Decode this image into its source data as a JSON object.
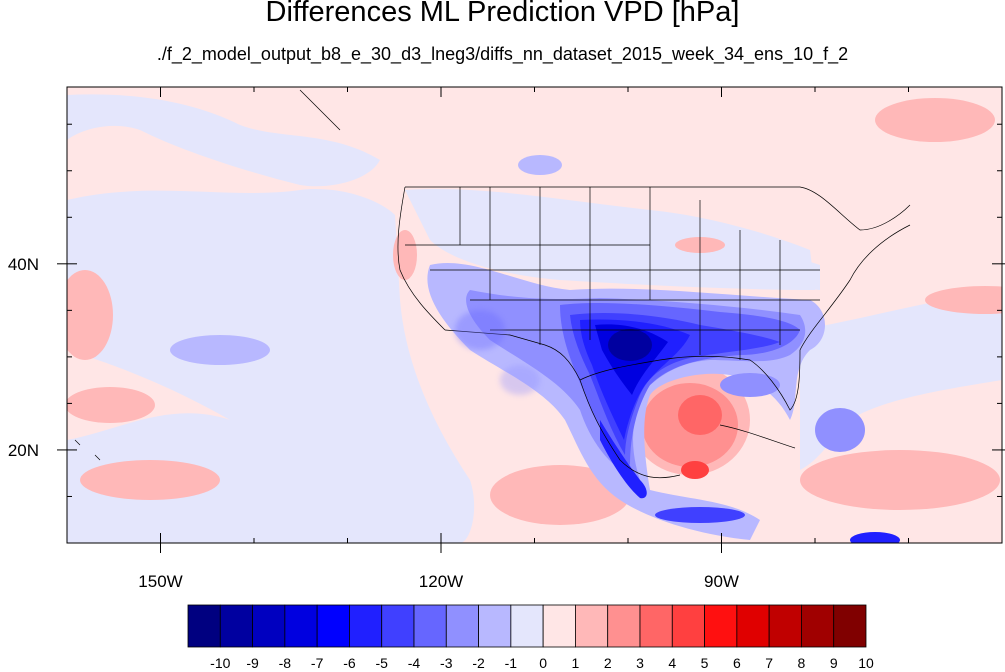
{
  "title": "Differences ML Prediction VPD [hPa]",
  "subtitle": "./f_2_model_output_b8_e_30_d3_lneg3/diffs_nn_dataset_2015_week_34_ens_10_f_2",
  "map": {
    "lon_range": [
      -160,
      -60
    ],
    "lat_range": [
      10,
      59
    ],
    "lon_ticks": [
      "150W",
      "120W",
      "90W"
    ],
    "lat_ticks": [
      "40N",
      "20N"
    ],
    "background_value_ocean_east": 0.5,
    "background_value_ocean_west": -0.5
  },
  "colorbar": {
    "labels": [
      "-10",
      "-9",
      "-8",
      "-7",
      "-6",
      "-5",
      "-4",
      "-3",
      "-2",
      "-1",
      "0",
      "1",
      "2",
      "3",
      "4",
      "5",
      "6",
      "7",
      "8",
      "9",
      "10"
    ],
    "colors": [
      "#000080",
      "#0000a0",
      "#0000c0",
      "#0000e0",
      "#0000ff",
      "#2020ff",
      "#4040ff",
      "#6666ff",
      "#9090ff",
      "#b8b8ff",
      "#e4e6fc",
      "#ffe6e6",
      "#ffb8b8",
      "#ff9090",
      "#ff6666",
      "#ff4040",
      "#ff1010",
      "#e00000",
      "#c00000",
      "#a00000",
      "#800000"
    ]
  }
}
